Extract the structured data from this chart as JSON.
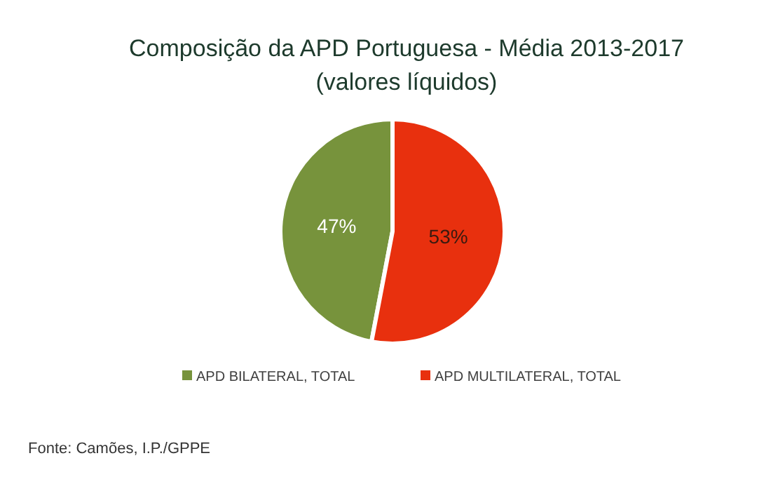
{
  "chart_data": {
    "type": "pie",
    "title": "Composição da APD Portuguesa - Média 2013-2017",
    "subtitle": "(valores líquidos)",
    "categories": [
      "APD BILATERAL, TOTAL",
      "APD MULTILATERAL, TOTAL"
    ],
    "values": [
      47,
      53
    ],
    "colors": [
      "#77933c",
      "#e8300e"
    ],
    "value_labels": [
      "47%",
      "53%"
    ],
    "legend": "bottom",
    "annotations": [
      "Fonte: Camões, I.P./GPPE"
    ]
  }
}
